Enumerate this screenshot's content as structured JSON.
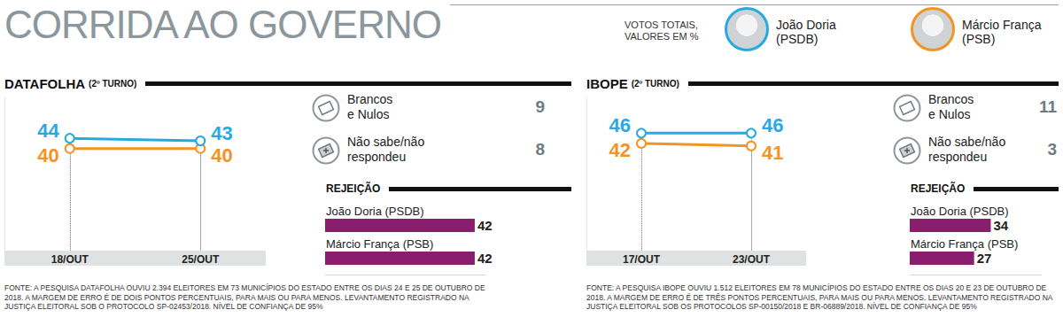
{
  "header": {
    "title": "CORRIDA AO GOVERNO",
    "subtitle": "VOTOS TOTAIS,\nVALORES EM %"
  },
  "chart_data": [
    {
      "type": "line",
      "title": "DATAFOLHA",
      "subtitle": "(2º TURNO)",
      "categories": [
        "18/OUT",
        "25/OUT"
      ],
      "series": [
        {
          "name": "João Doria",
          "party": "(PSDB)",
          "color": "#29a9e1",
          "values": [
            44,
            43
          ]
        },
        {
          "name": "Márcio França",
          "party": "(PSB)",
          "color": "#f39323",
          "values": [
            40,
            40
          ]
        }
      ],
      "ylim": [
        0,
        60
      ],
      "tick_labels": "x",
      "grid": false,
      "data_labels": true,
      "marker": "circle",
      "other_answers": [
        {
          "label": "Brancos\ne Nulos",
          "value": 9
        },
        {
          "label": "Não sabe/não\nrespondeu",
          "value": 8
        }
      ],
      "source": "FONTE: A PESQUISA DATAFOLHA OUVIU 2.394 ELEITORES EM 73 MUNICÍPIOS DO ESTADO ENTRE OS DIAS 24 E 25 DE OUTUBRO DE 2018. A MARGEM DE ERRO É DE DOIS PONTOS PERCENTUAIS, PARA MAIS OU PARA MENOS. LEVANTAMENTO REGISTRADO NA JUSTIÇA ELEITORAL SOB O PROTOCOLO SP-02453/2018. NÍVEL DE CONFIANÇA DE 95%"
    },
    {
      "type": "bar",
      "orientation": "horizontal",
      "title": "REJEIÇÃO",
      "categories": [
        "João Doria (PSDB)",
        "Márcio França (PSB)"
      ],
      "values": [
        42,
        42
      ],
      "color": "#8b1d6f",
      "xlim": [
        0,
        45
      ],
      "tick_labels": "y",
      "grid": false,
      "data_labels": true
    },
    {
      "type": "line",
      "title": "IBOPE",
      "subtitle": "(2º TURNO)",
      "categories": [
        "17/OUT",
        "23/OUT"
      ],
      "series": [
        {
          "name": "João Doria",
          "party": "(PSDB)",
          "color": "#29a9e1",
          "values": [
            46,
            46
          ]
        },
        {
          "name": "Márcio França",
          "party": "(PSB)",
          "color": "#f39323",
          "values": [
            42,
            41
          ]
        }
      ],
      "ylim": [
        0,
        60
      ],
      "tick_labels": "x",
      "grid": false,
      "data_labels": true,
      "marker": "circle",
      "other_answers": [
        {
          "label": "Brancos\ne Nulos",
          "value": 11
        },
        {
          "label": "Não sabe/não\nrespondeu",
          "value": 3
        }
      ],
      "source": "FONTE: A PESQUISA IBOPE OUVIU 1.512 ELEITORES EM 78 MUNICÍPIOS DO ESTADO ENTRE OS DIAS 20 E 23 DE OUTUBRO DE 2018. A MARGEM DE ERRO É DE TRÊS PONTOS PERCENTUAIS, PARA MAIS OU PARA MENOS. LEVANTAMENTO REGISTRADO NA JUSTIÇA ELEITORAL SOB OS PROTOCOLOS SP-00150/2018 E BR-06889/2018. NÍVEL DE CONFIANÇA DE 95%"
    },
    {
      "type": "bar",
      "orientation": "horizontal",
      "title": "REJEIÇÃO",
      "categories": [
        "João Doria (PSDB)",
        "Márcio França (PSB)"
      ],
      "values": [
        34,
        27
      ],
      "color": "#8b1d6f",
      "xlim": [
        0,
        55
      ],
      "tick_labels": "y",
      "grid": false,
      "data_labels": true
    }
  ]
}
